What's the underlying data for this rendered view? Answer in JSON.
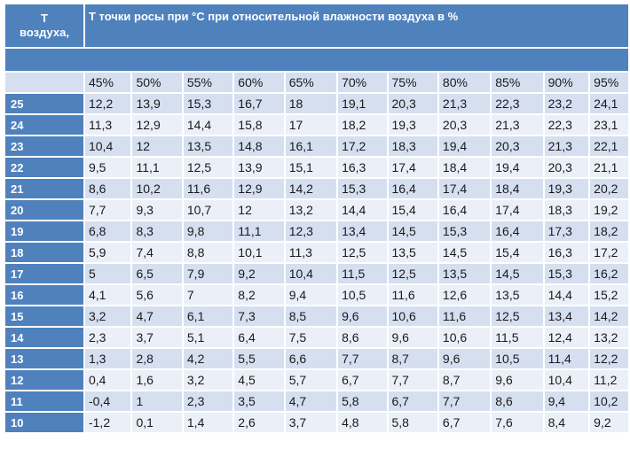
{
  "header": {
    "corner_line1": "T",
    "corner_line2": "воздуха,",
    "title": "Т точки росы при °С при относительной влажности воздуха в %"
  },
  "humidity": [
    "45%",
    "50%",
    "55%",
    "60%",
    "65%",
    "70%",
    "75%",
    "80%",
    "85%",
    "90%",
    "95%"
  ],
  "rows": [
    {
      "t": "25",
      "v": [
        "12,2",
        "13,9",
        "15,3",
        "16,7",
        "18",
        "19,1",
        "20,3",
        "21,3",
        "22,3",
        "23,2",
        "24,1"
      ]
    },
    {
      "t": "24",
      "v": [
        "11,3",
        "12,9",
        "14,4",
        "15,8",
        "17",
        "18,2",
        "19,3",
        "20,3",
        "21,3",
        "22,3",
        "23,1"
      ]
    },
    {
      "t": "23",
      "v": [
        "10,4",
        "12",
        "13,5",
        "14,8",
        "16,1",
        "17,2",
        "18,3",
        "19,4",
        "20,3",
        "21,3",
        "22,1"
      ]
    },
    {
      "t": "22",
      "v": [
        "9,5",
        "11,1",
        "12,5",
        "13,9",
        "15,1",
        "16,3",
        "17,4",
        "18,4",
        "19,4",
        "20,3",
        "21,1"
      ]
    },
    {
      "t": "21",
      "v": [
        "8,6",
        "10,2",
        "11,6",
        "12,9",
        "14,2",
        "15,3",
        "16,4",
        "17,4",
        "18,4",
        "19,3",
        "20,2"
      ]
    },
    {
      "t": "20",
      "v": [
        "7,7",
        "9,3",
        "10,7",
        "12",
        "13,2",
        "14,4",
        "15,4",
        "16,4",
        "17,4",
        "18,3",
        "19,2"
      ]
    },
    {
      "t": "19",
      "v": [
        "6,8",
        "8,3",
        "9,8",
        "11,1",
        "12,3",
        "13,4",
        "14,5",
        "15,3",
        "16,4",
        "17,3",
        "18,2"
      ]
    },
    {
      "t": "18",
      "v": [
        "5,9",
        "7,4",
        "8,8",
        "10,1",
        "11,3",
        "12,5",
        "13,5",
        "14,5",
        "15,4",
        "16,3",
        "17,2"
      ]
    },
    {
      "t": "17",
      "v": [
        "5",
        "6,5",
        "7,9",
        "9,2",
        "10,4",
        "11,5",
        "12,5",
        "13,5",
        "14,5",
        "15,3",
        "16,2"
      ]
    },
    {
      "t": "16",
      "v": [
        "4,1",
        "5,6",
        "7",
        "8,2",
        "9,4",
        "10,5",
        "11,6",
        "12,6",
        "13,5",
        "14,4",
        "15,2"
      ]
    },
    {
      "t": "15",
      "v": [
        "3,2",
        "4,7",
        "6,1",
        "7,3",
        "8,5",
        "9,6",
        "10,6",
        "11,6",
        "12,5",
        "13,4",
        "14,2"
      ]
    },
    {
      "t": "14",
      "v": [
        "2,3",
        "3,7",
        "5,1",
        "6,4",
        "7,5",
        "8,6",
        "9,6",
        "10,6",
        "11,5",
        "12,4",
        "13,2"
      ]
    },
    {
      "t": "13",
      "v": [
        "1,3",
        "2,8",
        "4,2",
        "5,5",
        "6,6",
        "7,7",
        "8,7",
        "9,6",
        "10,5",
        "11,4",
        "12,2"
      ]
    },
    {
      "t": "12",
      "v": [
        "0,4",
        "1,6",
        "3,2",
        "4,5",
        "5,7",
        "6,7",
        "7,7",
        "8,7",
        "9,6",
        "10,4",
        "11,2"
      ]
    },
    {
      "t": "11",
      "v": [
        "-0,4",
        "1",
        "2,3",
        "3,5",
        "4,7",
        "5,8",
        "6,7",
        "7,7",
        "8,6",
        "9,4",
        "10,2"
      ]
    },
    {
      "t": "10",
      "v": [
        "-1,2",
        "0,1",
        "1,4",
        "2,6",
        "3,7",
        "4,8",
        "5,8",
        "6,7",
        "7,6",
        "8,4",
        "9,2"
      ]
    }
  ],
  "colors": {
    "header_blue": "#4f81bd",
    "row_dark": "#d5dff0",
    "row_light": "#ebf0f8"
  }
}
